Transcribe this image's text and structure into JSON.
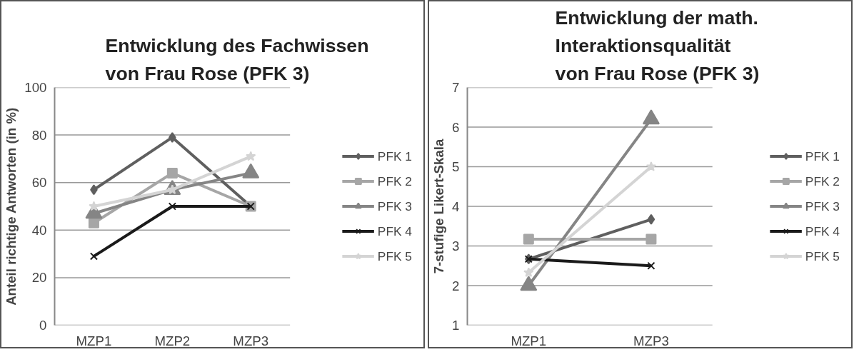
{
  "chart_data": [
    {
      "type": "line",
      "title": "Entwicklung des Fachwissen\nvon Frau Rose (PFK 3)",
      "ylabel": "Anteil richtige Antworten (in %)",
      "categories": [
        "MZP1",
        "MZP2",
        "MZP3"
      ],
      "ylim": [
        0,
        100
      ],
      "yticks": [
        0,
        20,
        40,
        60,
        80,
        100
      ],
      "grid": "y",
      "legend": "right",
      "series": [
        {
          "name": "PFK 1",
          "color": "#5f5f5f",
          "marker": "diamond",
          "values": [
            57,
            79,
            50
          ]
        },
        {
          "name": "PFK 2",
          "color": "#a6a6a6",
          "marker": "square",
          "values": [
            43,
            64,
            50
          ]
        },
        {
          "name": "PFK 3",
          "color": "#858585",
          "marker": "triangle",
          "values": [
            47,
            57,
            64
          ]
        },
        {
          "name": "PFK 4",
          "color": "#1a1a1a",
          "marker": "cross",
          "values": [
            29,
            50,
            50
          ]
        },
        {
          "name": "PFK 5",
          "color": "#d4d4d4",
          "marker": "star",
          "values": [
            50,
            57,
            71
          ]
        }
      ]
    },
    {
      "type": "line",
      "title": "Entwicklung der math.\nInteraktionsqualität\nvon Frau Rose (PFK 3)",
      "ylabel": "7-stufige Likert-Skala",
      "categories": [
        "MZP1",
        "MZP3"
      ],
      "ylim": [
        1,
        7
      ],
      "yticks": [
        1,
        2,
        3,
        4,
        5,
        6,
        7
      ],
      "grid": "y",
      "legend": "right",
      "series": [
        {
          "name": "PFK 1",
          "color": "#5f5f5f",
          "marker": "diamond",
          "values": [
            2.67,
            3.67
          ]
        },
        {
          "name": "PFK 2",
          "color": "#a6a6a6",
          "marker": "square",
          "values": [
            3.17,
            3.17
          ]
        },
        {
          "name": "PFK 3",
          "color": "#858585",
          "marker": "triangle",
          "values": [
            2.0,
            6.2
          ]
        },
        {
          "name": "PFK 4",
          "color": "#1a1a1a",
          "marker": "cross",
          "values": [
            2.67,
            2.5
          ]
        },
        {
          "name": "PFK 5",
          "color": "#d4d4d4",
          "marker": "star",
          "values": [
            2.33,
            5.0
          ]
        }
      ]
    }
  ]
}
